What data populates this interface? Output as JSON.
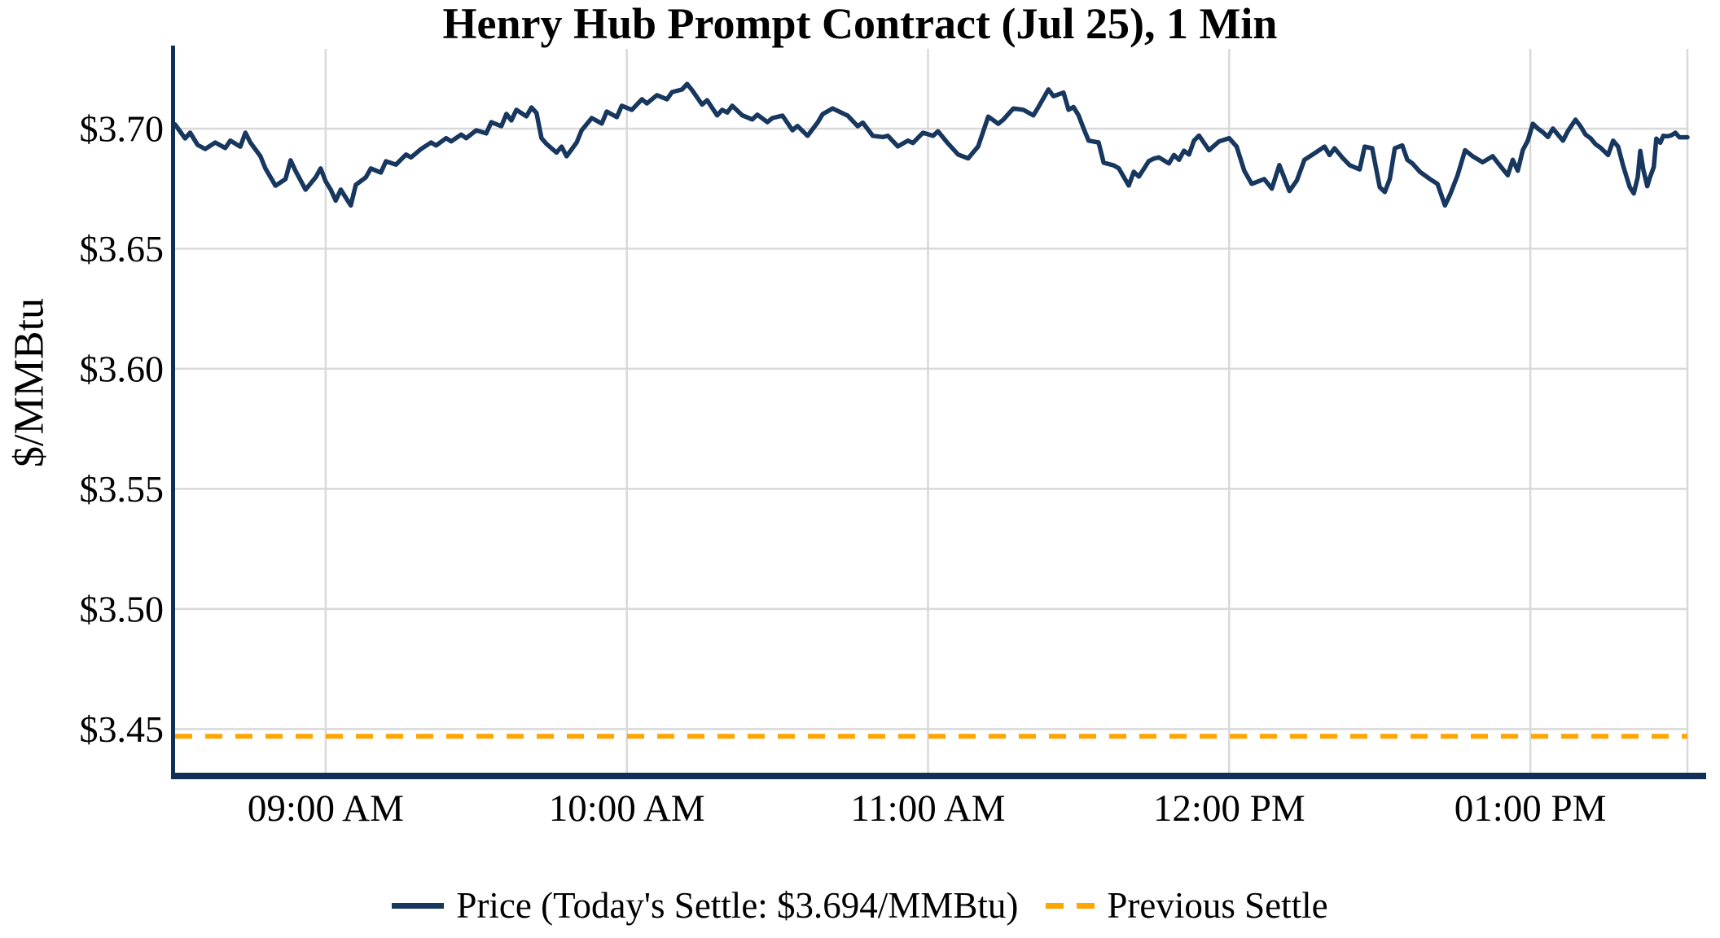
{
  "title": "Henry Hub Prompt Contract (Jul 25), 1 Min",
  "y_axis_label": "$/MMBtu",
  "legend": {
    "price": "Price (Today's Settle: $3.694/MMBtu)",
    "previous_settle": "Previous Settle"
  },
  "colors": {
    "price_line": "#17375E",
    "previous_settle_line": "#FFA500",
    "axis_spine": "#112F56",
    "gridline": "#D9D9D9",
    "text": "#000000",
    "background": "#FFFFFF"
  },
  "chart_data": {
    "type": "line",
    "title": "Henry Hub Prompt Contract (Jul 25), 1 Min",
    "xlabel": "",
    "ylabel": "$/MMBtu",
    "x_unit": "minutes after 08:30 AM",
    "xlim": [
      0,
      301.3
    ],
    "ylim": [
      3.4315,
      3.7332
    ],
    "grid": true,
    "legend_position": "bottom-center",
    "todays_settle": 3.694,
    "previous_settle": 3.447,
    "y_ticks": [
      {
        "value": 3.45,
        "label": "$3.45"
      },
      {
        "value": 3.5,
        "label": "$3.50"
      },
      {
        "value": 3.55,
        "label": "$3.55"
      },
      {
        "value": 3.6,
        "label": "$3.60"
      },
      {
        "value": 3.65,
        "label": "$3.65"
      },
      {
        "value": 3.7,
        "label": "$3.70"
      }
    ],
    "x_ticks": [
      {
        "t": 30,
        "label": "09:00 AM"
      },
      {
        "t": 90,
        "label": "10:00 AM"
      },
      {
        "t": 150,
        "label": "11:00 AM"
      },
      {
        "t": 210,
        "label": "12:00 PM"
      },
      {
        "t": 270,
        "label": "01:00 PM"
      }
    ],
    "series": [
      {
        "name": "Price",
        "type": "line",
        "color": "#17375E",
        "points": [
          [
            0,
            3.7017
          ],
          [
            2,
            3.6959
          ],
          [
            3,
            3.6983
          ],
          [
            4.5,
            3.6932
          ],
          [
            6,
            3.6915
          ],
          [
            8,
            3.6942
          ],
          [
            10,
            3.6919
          ],
          [
            11,
            3.695
          ],
          [
            13,
            3.6925
          ],
          [
            14,
            3.6983
          ],
          [
            15,
            3.6942
          ],
          [
            17,
            3.6885
          ],
          [
            18,
            3.6834
          ],
          [
            20,
            3.6762
          ],
          [
            22,
            3.679
          ],
          [
            23,
            3.6868
          ],
          [
            24,
            3.6824
          ],
          [
            26,
            3.6746
          ],
          [
            28,
            3.6797
          ],
          [
            29,
            3.6834
          ],
          [
            30,
            3.678
          ],
          [
            31,
            3.6746
          ],
          [
            32,
            3.67
          ],
          [
            33,
            3.6746
          ],
          [
            35,
            3.668
          ],
          [
            36,
            3.6766
          ],
          [
            38,
            3.6797
          ],
          [
            39,
            3.6834
          ],
          [
            41,
            3.6817
          ],
          [
            42,
            3.6864
          ],
          [
            44,
            3.685
          ],
          [
            46,
            3.6892
          ],
          [
            47,
            3.688
          ],
          [
            49,
            3.6915
          ],
          [
            51,
            3.6942
          ],
          [
            52,
            3.693
          ],
          [
            54,
            3.696
          ],
          [
            55,
            3.6947
          ],
          [
            57,
            3.6975
          ],
          [
            58,
            3.696
          ],
          [
            60,
            3.6993
          ],
          [
            62,
            3.698
          ],
          [
            63,
            3.7027
          ],
          [
            65,
            3.701
          ],
          [
            66,
            3.7061
          ],
          [
            67,
            3.7034
          ],
          [
            68,
            3.7078
          ],
          [
            70,
            3.7051
          ],
          [
            71,
            3.7088
          ],
          [
            72,
            3.7065
          ],
          [
            73,
            3.696
          ],
          [
            74,
            3.6936
          ],
          [
            76,
            3.69
          ],
          [
            77,
            3.6925
          ],
          [
            78,
            3.6885
          ],
          [
            80,
            3.6942
          ],
          [
            81,
            3.6993
          ],
          [
            83,
            3.7044
          ],
          [
            85,
            3.7021
          ],
          [
            86,
            3.7071
          ],
          [
            88,
            3.7048
          ],
          [
            89,
            3.7095
          ],
          [
            91,
            3.7078
          ],
          [
            93,
            3.7122
          ],
          [
            94,
            3.7105
          ],
          [
            96,
            3.7139
          ],
          [
            98,
            3.7122
          ],
          [
            99,
            3.7152
          ],
          [
            101,
            3.7163
          ],
          [
            102,
            3.7186
          ],
          [
            103,
            3.716
          ],
          [
            105,
            3.71
          ],
          [
            106,
            3.7118
          ],
          [
            108,
            3.7055
          ],
          [
            109,
            3.7078
          ],
          [
            110,
            3.7067
          ],
          [
            111,
            3.7095
          ],
          [
            113,
            3.7055
          ],
          [
            115,
            3.7038
          ],
          [
            116,
            3.7058
          ],
          [
            118,
            3.7027
          ],
          [
            119,
            3.7044
          ],
          [
            121,
            3.7054
          ],
          [
            123,
            3.6993
          ],
          [
            124,
            3.7011
          ],
          [
            126,
            3.697
          ],
          [
            128,
            3.7025
          ],
          [
            129,
            3.706
          ],
          [
            131,
            3.7084
          ],
          [
            133,
            3.7064
          ],
          [
            134,
            3.7054
          ],
          [
            136,
            3.701
          ],
          [
            137,
            3.7025
          ],
          [
            139,
            3.697
          ],
          [
            141,
            3.6965
          ],
          [
            142,
            3.697
          ],
          [
            144,
            3.6926
          ],
          [
            146,
            3.695
          ],
          [
            147,
            3.694
          ],
          [
            149,
            3.6983
          ],
          [
            151,
            3.697
          ],
          [
            152,
            3.6989
          ],
          [
            154,
            3.6938
          ],
          [
            156,
            3.6892
          ],
          [
            158,
            3.6876
          ],
          [
            160,
            3.6926
          ],
          [
            162,
            3.705
          ],
          [
            164,
            3.702
          ],
          [
            165,
            3.7037
          ],
          [
            167,
            3.7084
          ],
          [
            169,
            3.7078
          ],
          [
            171,
            3.7055
          ],
          [
            172,
            3.709
          ],
          [
            174,
            3.7163
          ],
          [
            175,
            3.7135
          ],
          [
            177,
            3.715
          ],
          [
            178,
            3.7078
          ],
          [
            179,
            3.709
          ],
          [
            180,
            3.7055
          ],
          [
            181,
            3.7
          ],
          [
            182,
            3.695
          ],
          [
            184,
            3.6942
          ],
          [
            185,
            3.6858
          ],
          [
            187,
            3.6847
          ],
          [
            188,
            3.6835
          ],
          [
            190,
            3.6763
          ],
          [
            191,
            3.682
          ],
          [
            192,
            3.68
          ],
          [
            194,
            3.6865
          ],
          [
            195,
            3.6875
          ],
          [
            196,
            3.688
          ],
          [
            198,
            3.6855
          ],
          [
            199,
            3.689
          ],
          [
            200,
            3.687
          ],
          [
            201,
            3.6908
          ],
          [
            202,
            3.6892
          ],
          [
            203,
            3.695
          ],
          [
            204,
            3.6971
          ],
          [
            206,
            3.691
          ],
          [
            208,
            3.6947
          ],
          [
            210,
            3.696
          ],
          [
            211.5,
            3.6925
          ],
          [
            213,
            3.6825
          ],
          [
            214.5,
            3.677
          ],
          [
            217,
            3.679
          ],
          [
            218.5,
            3.675
          ],
          [
            220,
            3.6848
          ],
          [
            222,
            3.674
          ],
          [
            223.5,
            3.6785
          ],
          [
            225,
            3.687
          ],
          [
            227,
            3.6897
          ],
          [
            229,
            3.6925
          ],
          [
            230,
            3.689
          ],
          [
            231,
            3.6918
          ],
          [
            232.5,
            3.688
          ],
          [
            234,
            3.6848
          ],
          [
            236,
            3.683
          ],
          [
            237,
            3.6925
          ],
          [
            238.5,
            3.6918
          ],
          [
            240,
            3.6756
          ],
          [
            241,
            3.6736
          ],
          [
            242,
            3.679
          ],
          [
            243,
            3.6918
          ],
          [
            244.5,
            3.693
          ],
          [
            245.5,
            3.687
          ],
          [
            246.5,
            3.6855
          ],
          [
            248,
            3.682
          ],
          [
            250,
            3.679
          ],
          [
            251.5,
            3.677
          ],
          [
            253,
            3.668
          ],
          [
            254,
            3.6725
          ],
          [
            255.5,
            3.6805
          ],
          [
            257,
            3.691
          ],
          [
            258.5,
            3.6885
          ],
          [
            260.5,
            3.686
          ],
          [
            262.5,
            3.6885
          ],
          [
            264,
            3.6845
          ],
          [
            265.5,
            3.6806
          ],
          [
            266.5,
            3.687
          ],
          [
            267.5,
            3.6825
          ],
          [
            268.5,
            3.691
          ],
          [
            269.5,
            3.695
          ],
          [
            270.5,
            3.702
          ],
          [
            271.5,
            3.7
          ],
          [
            272.5,
            3.6985
          ],
          [
            273.5,
            3.6965
          ],
          [
            274.5,
            3.7
          ],
          [
            275.5,
            3.6975
          ],
          [
            276.5,
            3.695
          ],
          [
            277.5,
            3.699
          ],
          [
            279,
            3.7037
          ],
          [
            280,
            3.701
          ],
          [
            281,
            3.6975
          ],
          [
            282,
            3.696
          ],
          [
            283,
            3.6935
          ],
          [
            284,
            3.692
          ],
          [
            285.5,
            3.689
          ],
          [
            286.5,
            3.695
          ],
          [
            287.5,
            3.6925
          ],
          [
            288.5,
            3.6845
          ],
          [
            289.8,
            3.6757
          ],
          [
            290.6,
            3.673
          ],
          [
            291.4,
            3.6798
          ],
          [
            291.9,
            3.6907
          ],
          [
            292.5,
            3.683
          ],
          [
            293.3,
            3.676
          ],
          [
            293.8,
            3.6795
          ],
          [
            294.6,
            3.684
          ],
          [
            295.1,
            3.6958
          ],
          [
            295.9,
            3.6941
          ],
          [
            296.5,
            3.697
          ],
          [
            297.3,
            3.6968
          ],
          [
            298.1,
            3.6972
          ],
          [
            298.9,
            3.6983
          ],
          [
            299.7,
            3.6964
          ],
          [
            300.5,
            3.6964
          ],
          [
            301.3,
            3.6964
          ]
        ]
      },
      {
        "name": "Previous Settle",
        "type": "hline",
        "style": "dashed",
        "color": "#FFA500",
        "value": 3.447
      }
    ]
  }
}
